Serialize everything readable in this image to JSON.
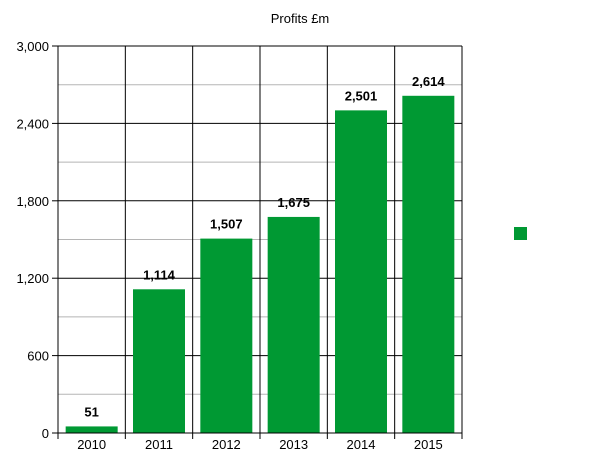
{
  "chart_data": {
    "type": "bar",
    "title": "Profits £m",
    "categories": [
      "2010",
      "2011",
      "2012",
      "2013",
      "2014",
      "2015"
    ],
    "series": [
      {
        "values": [
          51,
          1114,
          1507,
          1675,
          2501,
          2614
        ],
        "value_labels": [
          "51",
          "1,114",
          "1,507",
          "1,675",
          "2,501",
          "2,614"
        ],
        "color": "#009933"
      }
    ],
    "ylim": [
      0,
      3000
    ],
    "y_ticks": [
      0,
      600,
      1200,
      1800,
      2400,
      3000
    ],
    "y_tick_labels": [
      "0",
      "600",
      "1,200",
      "1,800",
      "2,400",
      "3,000"
    ],
    "grid": true,
    "legend": {
      "position": "right",
      "swatch_color": "#009933"
    }
  }
}
